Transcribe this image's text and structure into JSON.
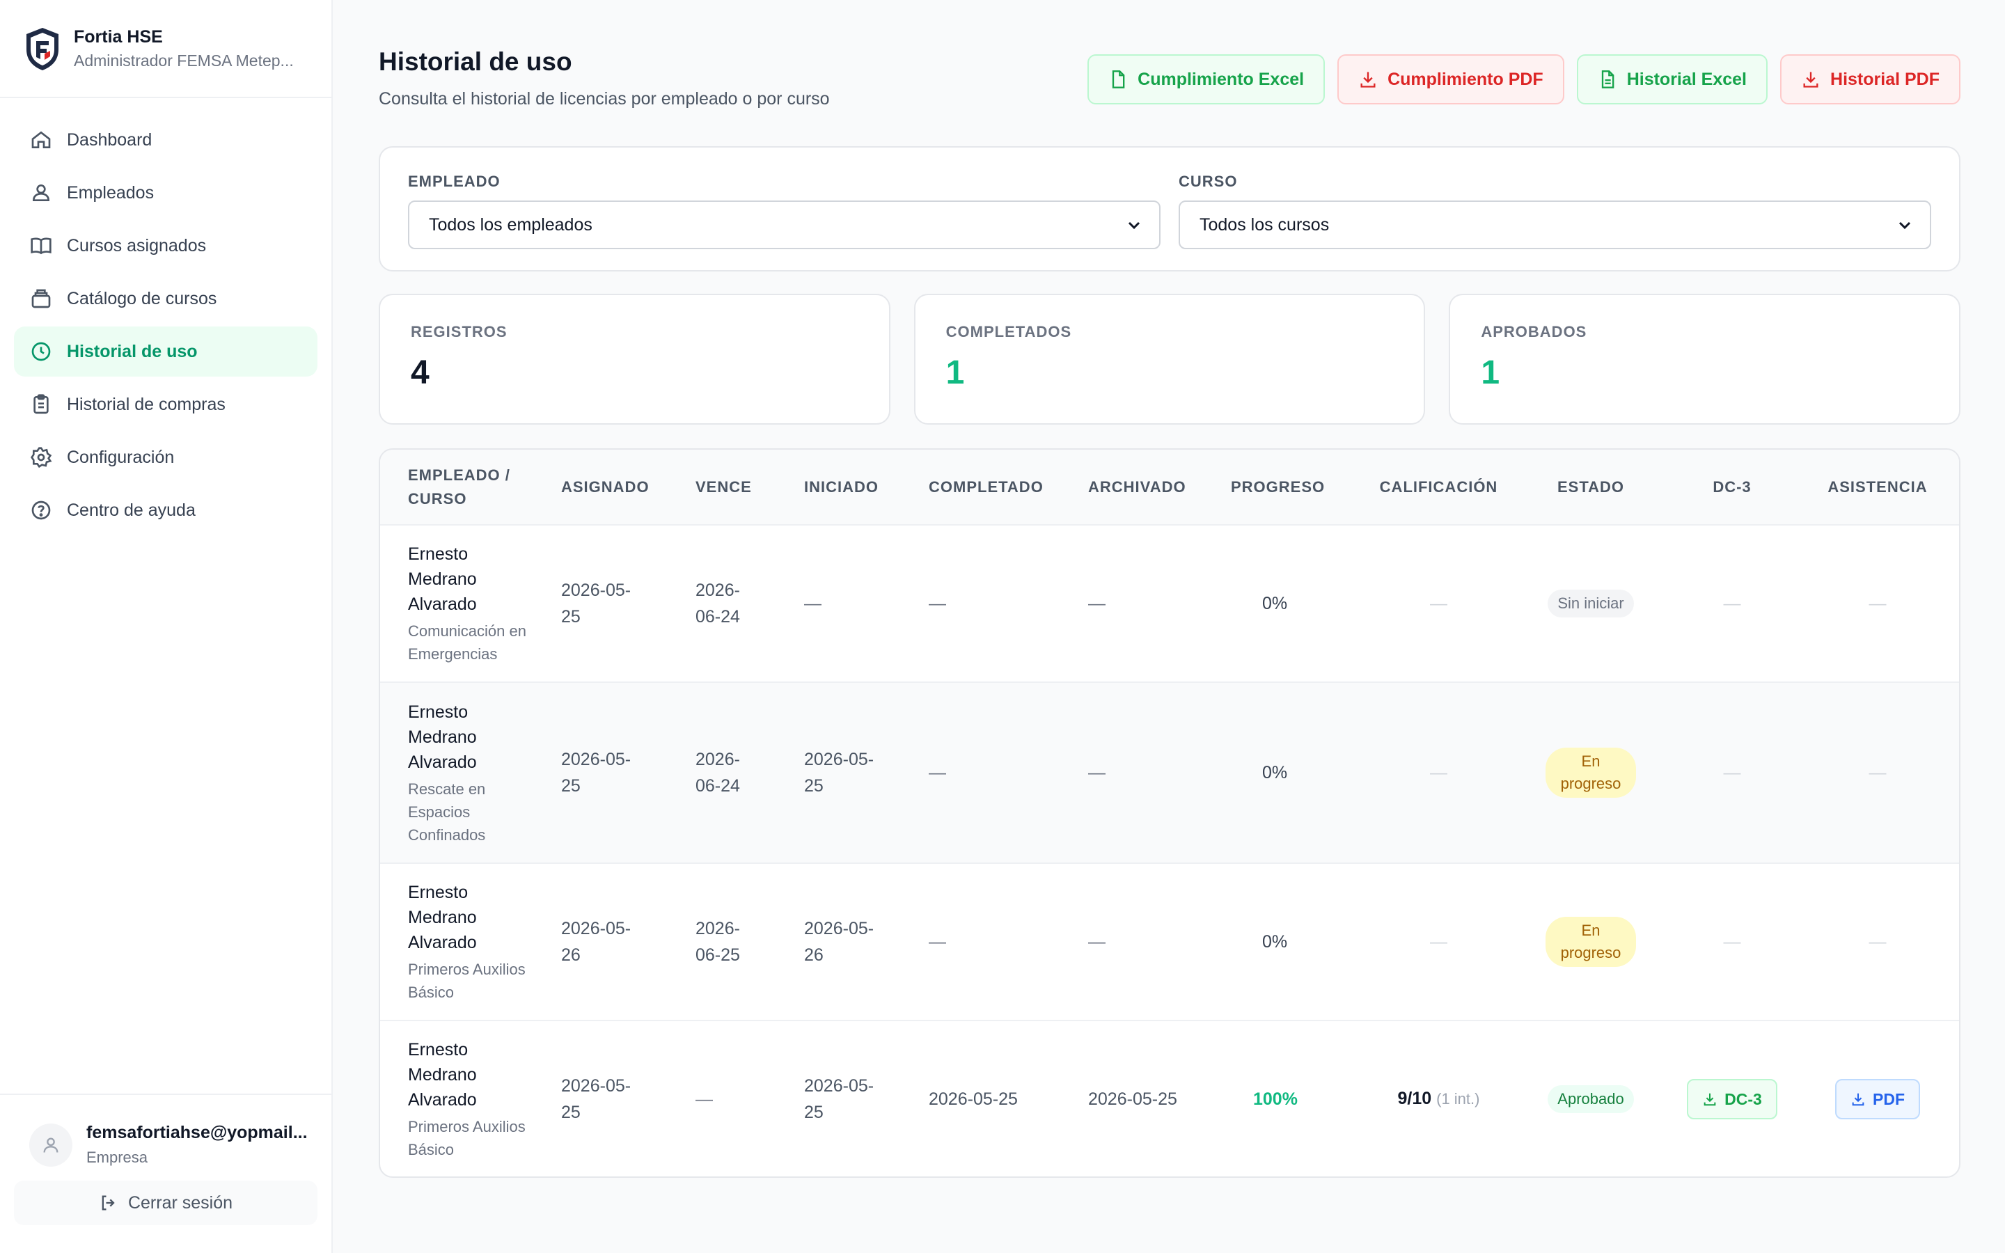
{
  "brand": {
    "name": "Fortia HSE",
    "subtitle": "Administrador FEMSA Metep..."
  },
  "nav": [
    {
      "label": "Dashboard",
      "icon": "home-icon"
    },
    {
      "label": "Empleados",
      "icon": "users-icon"
    },
    {
      "label": "Cursos asignados",
      "icon": "book-icon"
    },
    {
      "label": "Catálogo de cursos",
      "icon": "catalog-icon"
    },
    {
      "label": "Historial de uso",
      "icon": "clock-icon",
      "active": true
    },
    {
      "label": "Historial de compras",
      "icon": "clipboard-icon"
    },
    {
      "label": "Configuración",
      "icon": "gear-icon"
    },
    {
      "label": "Centro de ayuda",
      "icon": "help-icon"
    }
  ],
  "user": {
    "email": "femsafortiahse@yopmail...",
    "role": "Empresa"
  },
  "logout_label": "Cerrar sesión",
  "header": {
    "title": "Historial de uso",
    "subtitle": "Consulta el historial de licencias por empleado o por curso"
  },
  "actions": {
    "cumplimiento_excel": "Cumplimiento Excel",
    "cumplimiento_pdf": "Cumplimiento PDF",
    "historial_excel": "Historial Excel",
    "historial_pdf": "Historial PDF"
  },
  "filters": {
    "employee_label": "EMPLEADO",
    "employee_value": "Todos los empleados",
    "course_label": "CURSO",
    "course_value": "Todos los cursos"
  },
  "stats": {
    "registros": {
      "label": "REGISTROS",
      "value": "4"
    },
    "completados": {
      "label": "COMPLETADOS",
      "value": "1"
    },
    "aprobados": {
      "label": "APROBADOS",
      "value": "1"
    }
  },
  "table": {
    "headers": {
      "employee_line1": "EMPLEADO /",
      "employee_line2": "CURSO",
      "asignado": "ASIGNADO",
      "vence": "VENCE",
      "iniciado": "INICIADO",
      "completado": "COMPLETADO",
      "archivado": "ARCHIVADO",
      "progreso": "PROGRESO",
      "calificacion": "CALIFICACIÓN",
      "estado": "ESTADO",
      "dc3": "DC-3",
      "asistencia": "ASISTENCIA"
    },
    "rows": [
      {
        "name_lines": [
          "Ernesto",
          "Medrano",
          "Alvarado"
        ],
        "course_lines": [
          "Comunicación en",
          "Emergencias"
        ],
        "asignado": [
          "2026-05-",
          "25"
        ],
        "vence": [
          "2026-",
          "06-24"
        ],
        "iniciado": [
          "—"
        ],
        "completado": "—",
        "archivado": "—",
        "progreso": "0%",
        "calificacion": "—",
        "estado": [
          "Sin iniciar"
        ],
        "dc3": "—",
        "asistencia": "—"
      },
      {
        "name_lines": [
          "Ernesto",
          "Medrano",
          "Alvarado"
        ],
        "course_lines": [
          "Rescate en",
          "Espacios",
          "Confinados"
        ],
        "asignado": [
          "2026-05-",
          "25"
        ],
        "vence": [
          "2026-",
          "06-24"
        ],
        "iniciado": [
          "2026-05-",
          "25"
        ],
        "completado": "—",
        "archivado": "—",
        "progreso": "0%",
        "calificacion": "—",
        "estado": [
          "En",
          "progreso"
        ],
        "dc3": "—",
        "asistencia": "—"
      },
      {
        "name_lines": [
          "Ernesto",
          "Medrano",
          "Alvarado"
        ],
        "course_lines": [
          "Primeros Auxilios",
          "Básico"
        ],
        "asignado": [
          "2026-05-",
          "26"
        ],
        "vence": [
          "2026-",
          "06-25"
        ],
        "iniciado": [
          "2026-05-",
          "26"
        ],
        "completado": "—",
        "archivado": "—",
        "progreso": "0%",
        "calificacion": "—",
        "estado": [
          "En",
          "progreso"
        ],
        "dc3": "—",
        "asistencia": "—"
      },
      {
        "name_lines": [
          "Ernesto",
          "Medrano",
          "Alvarado"
        ],
        "course_lines": [
          "Primeros Auxilios",
          "Básico"
        ],
        "asignado": [
          "2026-05-",
          "25"
        ],
        "vence": [
          "—"
        ],
        "iniciado": [
          "2026-05-",
          "25"
        ],
        "completado": "2026-05-25",
        "archivado": "2026-05-25",
        "progreso": "100%",
        "calificacion": "9/10",
        "calificacion_extra": "(1 int.)",
        "estado": [
          "Aprobado"
        ],
        "dc3_button": "DC-3",
        "asistencia_button": "PDF"
      }
    ]
  },
  "colors": {
    "accent_green": "#10b981",
    "active_nav_bg": "#ecfdf3",
    "danger_red": "#dc2626",
    "info_blue": "#2563eb"
  }
}
